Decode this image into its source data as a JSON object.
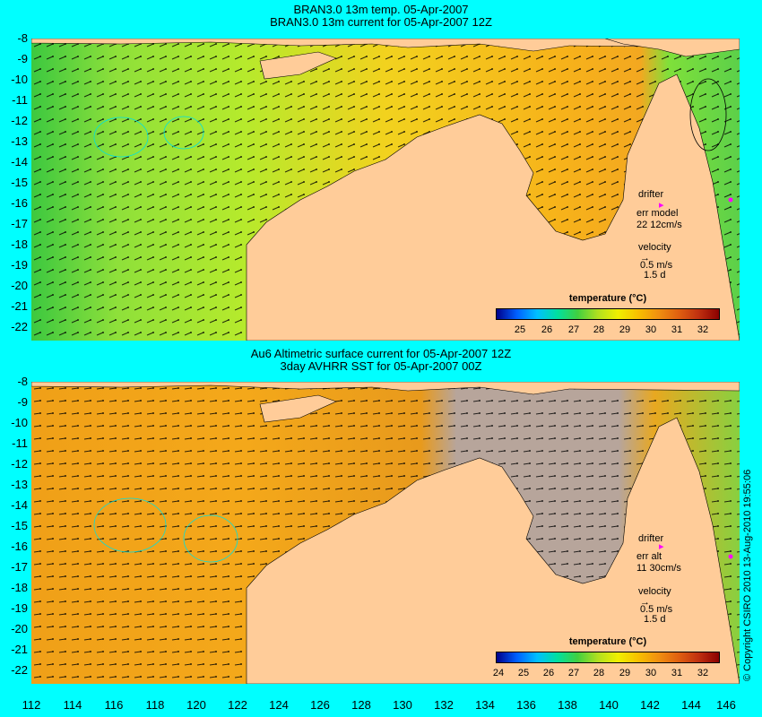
{
  "top_panel": {
    "title_line1": "BRAN3.0 13m temp. 05-Apr-2007",
    "title_line2": "BRAN3.0 13m current for 05-Apr-2007 12Z",
    "drifter_label": "drifter",
    "err_label": "err model",
    "err_value": "22 12cm/s",
    "velocity_label": "velocity",
    "velocity_scale": "0.5 m/s",
    "velocity_time": "1.5 d",
    "legend_title": "temperature (°C)",
    "legend_ticks": [
      "25",
      "26",
      "27",
      "28",
      "29",
      "30",
      "31",
      "32"
    ]
  },
  "bottom_panel": {
    "title_line1": "Au6 Altimetric surface current for 05-Apr-2007 12Z",
    "title_line2": "3day AVHRR SST for 05-Apr-2007 00Z",
    "drifter_label": "drifter",
    "err_label": "err alt",
    "err_value": "11 30cm/s",
    "velocity_label": "velocity",
    "velocity_scale": "0.5 m/s",
    "velocity_time": "1.5 d",
    "legend_title": "temperature (°C)",
    "legend_ticks": [
      "24",
      "25",
      "26",
      "27",
      "28",
      "29",
      "30",
      "31",
      "32"
    ]
  },
  "y_ticks": [
    "-8",
    "-9",
    "-10",
    "-11",
    "-12",
    "-13",
    "-14",
    "-15",
    "-16",
    "-17",
    "-18",
    "-19",
    "-20",
    "-21",
    "-22"
  ],
  "x_ticks": [
    "112",
    "114",
    "116",
    "118",
    "120",
    "122",
    "124",
    "126",
    "128",
    "130",
    "132",
    "134",
    "136",
    "138",
    "140",
    "142",
    "144",
    "146"
  ],
  "copyright": "© Copyright CSIRO 2010   13-Aug-2010 19:55:06",
  "colors": {
    "land": "#ffcc99",
    "background": "#00ffff",
    "drifter": "#ff00ff",
    "no_data": "#b7a59b"
  }
}
